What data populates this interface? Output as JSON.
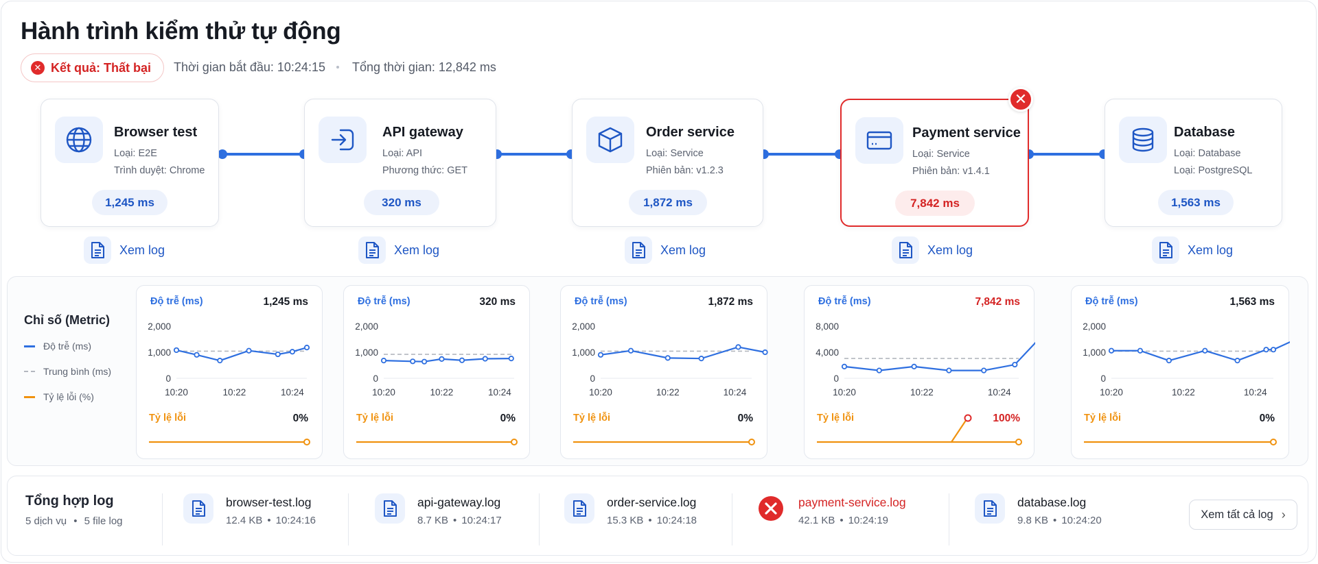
{
  "header": {
    "title": "Hành trình kiểm thử tự động",
    "result": "Kết quả: Thất bại",
    "start_time": "Thời gian bắt đầu: 10:24:15",
    "total_time": "Tổng thời gian: 12,842 ms"
  },
  "services": [
    {
      "name": "Browser test",
      "line1": "Loại: E2E",
      "line2": "Trình duyệt: Chrome",
      "duration": "1,245 ms",
      "view_log": "Xem log",
      "icon": "globe-icon",
      "status": "ok"
    },
    {
      "name": "API gateway",
      "line1": "Loại: API",
      "line2": "Phương thức: GET",
      "duration": "320 ms",
      "view_log": "Xem log",
      "icon": "gateway-icon",
      "status": "ok"
    },
    {
      "name": "Order service",
      "line1": "Loại: Service",
      "line2": "Phiên bản: v1.2.3",
      "duration": "1,872 ms",
      "view_log": "Xem log",
      "icon": "box-icon",
      "status": "ok"
    },
    {
      "name": "Payment service",
      "line1": "Loại: Service",
      "line2": "Phiên bản: v1.4.1",
      "duration": "7,842 ms",
      "view_log": "Xem log",
      "icon": "credit-card-icon",
      "status": "failed"
    },
    {
      "name": "Database",
      "line1": "Loại: Database",
      "line2": "Loại: PostgreSQL",
      "duration": "1,563 ms",
      "view_log": "Xem log",
      "icon": "database-icon",
      "status": "ok"
    }
  ],
  "metrics": {
    "title": "Chỉ số (Metric)",
    "legend": {
      "latency": "Độ trễ (ms)",
      "average": "Trung bình (ms)",
      "error_rate": "Tỷ lệ lỗi (%)"
    },
    "latency_label": "Độ trễ (ms)",
    "error_label": "Tỷ lệ lỗi",
    "colors": {
      "latency": "#2e6fe0",
      "average": "#b3b7bf",
      "error": "#f0920f",
      "failed": "#e02b2b"
    }
  },
  "chart_data": [
    {
      "type": "line",
      "title": "Độ trễ (ms)",
      "value_label": "1,245 ms",
      "x_ticks": [
        "10:20",
        "10:22",
        "10:24"
      ],
      "y_ticks": [
        "0",
        "1,000",
        "2,000"
      ],
      "ylim": [
        0,
        2000
      ],
      "x": [
        0,
        0.7,
        1.5,
        2.5,
        3.5,
        4,
        4.5
      ],
      "series": [
        {
          "name": "Độ trễ (ms)",
          "values": [
            1080,
            900,
            680,
            1060,
            920,
            1020,
            1180
          ]
        },
        {
          "name": "Trung bình (ms)",
          "values": [
            1040,
            1040,
            1040,
            1040,
            1040,
            1040,
            1040
          ]
        }
      ],
      "error_rate": {
        "label": "0%",
        "values": [
          0,
          0
        ]
      }
    },
    {
      "type": "line",
      "title": "Độ trễ (ms)",
      "value_label": "320 ms",
      "x_ticks": [
        "10:20",
        "10:22",
        "10:24"
      ],
      "y_ticks": [
        "0",
        "1,000",
        "2,000"
      ],
      "ylim": [
        0,
        2000
      ],
      "x": [
        0,
        1,
        1.4,
        2,
        2.7,
        3.5,
        4.4
      ],
      "series": [
        {
          "name": "Độ trễ (ms)",
          "values": [
            680,
            650,
            640,
            740,
            690,
            750,
            760
          ]
        },
        {
          "name": "Trung bình (ms)",
          "values": [
            920,
            920,
            920,
            920,
            920,
            920,
            920
          ]
        }
      ],
      "error_rate": {
        "label": "0%",
        "values": [
          0,
          0
        ]
      }
    },
    {
      "type": "line",
      "title": "Độ trễ (ms)",
      "value_label": "1,872 ms",
      "x_ticks": [
        "10:20",
        "10:22",
        "10:24"
      ],
      "y_ticks": [
        "0",
        "1,000",
        "2,000"
      ],
      "ylim": [
        0,
        2000
      ],
      "x": [
        0,
        0.9,
        2,
        3,
        4.1,
        4.9
      ],
      "series": [
        {
          "name": "Độ trễ (ms)",
          "values": [
            900,
            1060,
            780,
            760,
            1200,
            1000
          ]
        },
        {
          "name": "Trung bình (ms)",
          "values": [
            1040,
            1040,
            1040,
            1040,
            1040,
            1040
          ]
        }
      ],
      "error_rate": {
        "label": "0%",
        "values": [
          0,
          0
        ]
      }
    },
    {
      "type": "line",
      "title": "Độ trễ (ms)",
      "value_label": "7,842 ms",
      "x_ticks": [
        "10:20",
        "10:22",
        "10:24"
      ],
      "y_ticks": [
        "0",
        "4,000",
        "8,000"
      ],
      "ylim": [
        0,
        8000
      ],
      "x": [
        0,
        0.9,
        1.8,
        2.7,
        3.6,
        4.4,
        5.5
      ],
      "series": [
        {
          "name": "Độ trễ (ms)",
          "values": [
            1800,
            1200,
            1800,
            1200,
            1200,
            2100,
            9300
          ]
        },
        {
          "name": "Trung bình (ms)",
          "values": [
            3050,
            3050,
            3050,
            3050,
            3050,
            3050,
            3050
          ]
        }
      ],
      "error_rate": {
        "label": "100%",
        "values": [
          0,
          0,
          100
        ]
      }
    },
    {
      "type": "line",
      "title": "Độ trễ (ms)",
      "value_label": "1,563 ms",
      "x_ticks": [
        "10:20",
        "10:22",
        "10:24"
      ],
      "y_ticks": [
        "0",
        "1,000",
        "2,000"
      ],
      "ylim": [
        0,
        2000
      ],
      "x": [
        0,
        0.8,
        1.6,
        2.6,
        3.5,
        4.3,
        4.5,
        5.1
      ],
      "series": [
        {
          "name": "Độ trễ (ms)",
          "values": [
            1060,
            1060,
            680,
            1060,
            680,
            1100,
            1100,
            1480
          ]
        },
        {
          "name": "Trung bình (ms)",
          "values": [
            1040,
            1040,
            1040,
            1040,
            1040,
            1040,
            1040,
            1040
          ]
        }
      ],
      "error_rate": {
        "label": "0%",
        "values": [
          0,
          0
        ]
      }
    }
  ],
  "logs": {
    "title": "Tổng hợp log",
    "services_count": "5 dịch vụ",
    "files_count": "5 file log",
    "files": [
      {
        "name": "browser-test.log",
        "size": "12.4 KB",
        "time": "10:24:16",
        "status": "ok"
      },
      {
        "name": "api-gateway.log",
        "size": "8.7 KB",
        "time": "10:24:17",
        "status": "ok"
      },
      {
        "name": "order-service.log",
        "size": "15.3 KB",
        "time": "10:24:18",
        "status": "ok"
      },
      {
        "name": "payment-service.log",
        "size": "42.1 KB",
        "time": "10:24:19",
        "status": "failed"
      },
      {
        "name": "database.log",
        "size": "9.8 KB",
        "time": "10:24:20",
        "status": "ok"
      }
    ],
    "view_all": "Xem tất cả log"
  }
}
